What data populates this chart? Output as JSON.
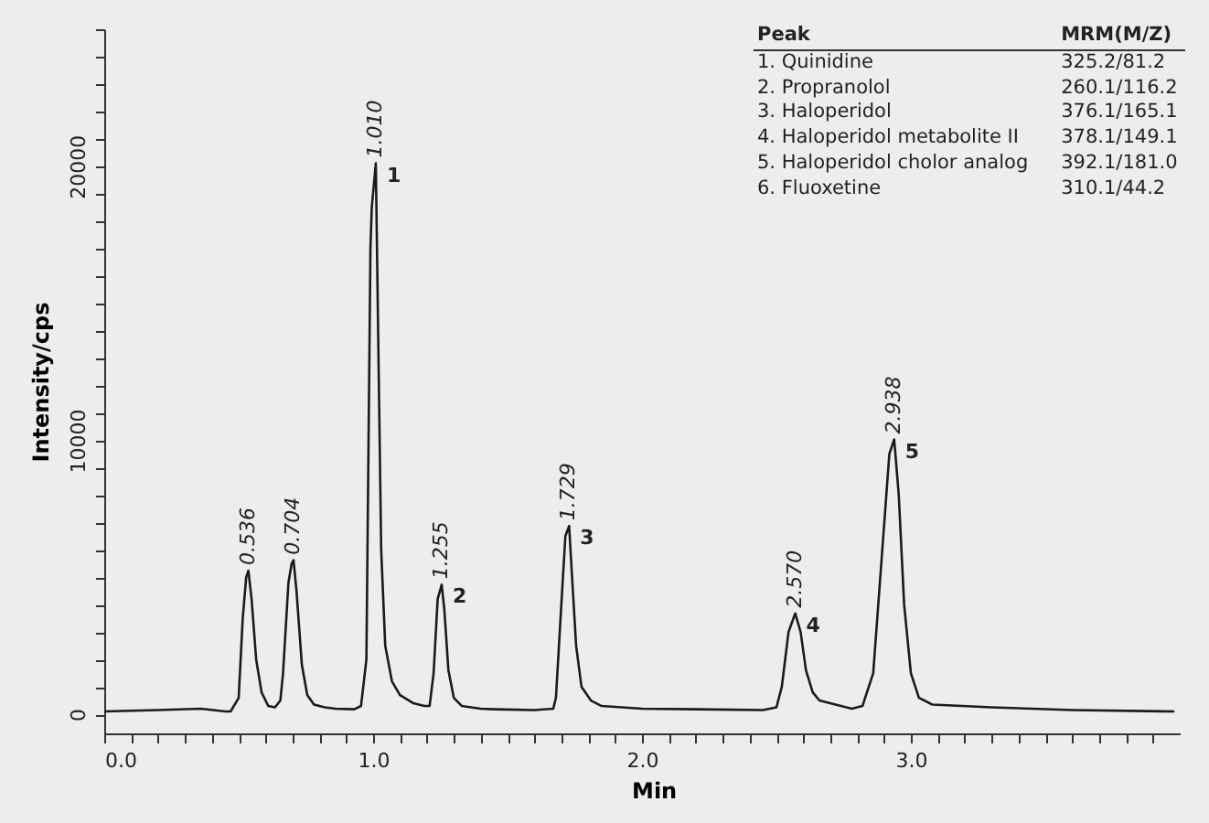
{
  "chart_data": {
    "type": "line",
    "xlabel": "Min",
    "ylabel": "Intensity/cps",
    "xlim": [
      0,
      4.0
    ],
    "ylim": [
      -700,
      25000
    ],
    "xticks": [
      {
        "value": 0,
        "label": "0.0"
      },
      {
        "value": 0.1,
        "label": null
      },
      {
        "value": 0.2,
        "label": null
      },
      {
        "value": 0.3,
        "label": null
      },
      {
        "value": 0.4,
        "label": null
      },
      {
        "value": 0.5,
        "label": null
      },
      {
        "value": 0.6,
        "label": null
      },
      {
        "value": 0.7,
        "label": null
      },
      {
        "value": 0.8,
        "label": null
      },
      {
        "value": 0.9,
        "label": null
      },
      {
        "value": 1,
        "label": "1.0"
      },
      {
        "value": 1.1,
        "label": null
      },
      {
        "value": 1.2,
        "label": null
      },
      {
        "value": 1.3,
        "label": null
      },
      {
        "value": 1.4,
        "label": null
      },
      {
        "value": 1.5,
        "label": null
      },
      {
        "value": 1.6,
        "label": null
      },
      {
        "value": 1.7,
        "label": null
      },
      {
        "value": 1.8,
        "label": null
      },
      {
        "value": 1.9,
        "label": null
      },
      {
        "value": 2,
        "label": "2.0"
      },
      {
        "value": 2.1,
        "label": null
      },
      {
        "value": 2.2,
        "label": null
      },
      {
        "value": 2.3,
        "label": null
      },
      {
        "value": 2.4,
        "label": null
      },
      {
        "value": 2.5,
        "label": null
      },
      {
        "value": 2.6,
        "label": null
      },
      {
        "value": 2.7,
        "label": null
      },
      {
        "value": 2.8,
        "label": null
      },
      {
        "value": 2.9,
        "label": null
      },
      {
        "value": 3,
        "label": "3.0"
      },
      {
        "value": 3.1,
        "label": null
      },
      {
        "value": 3.2,
        "label": null
      },
      {
        "value": 3.3,
        "label": null
      },
      {
        "value": 3.4,
        "label": null
      },
      {
        "value": 3.5,
        "label": null
      },
      {
        "value": 3.6,
        "label": null
      },
      {
        "value": 3.7,
        "label": null
      },
      {
        "value": 3.8,
        "label": null
      },
      {
        "value": 3.9,
        "label": null
      }
    ],
    "yticks": [
      0,
      {
        "value": 1000,
        "label": null
      },
      {
        "value": 2000,
        "label": null
      },
      {
        "value": 3000,
        "label": null
      },
      {
        "value": 4000,
        "label": null
      },
      {
        "value": 5000,
        "label": null
      },
      {
        "value": 6000,
        "label": null
      },
      {
        "value": 7000,
        "label": null
      },
      {
        "value": 8000,
        "label": null
      },
      {
        "value": 9000,
        "label": null
      },
      10000,
      {
        "value": 11000,
        "label": null
      },
      {
        "value": 12000,
        "label": null
      },
      {
        "value": 13000,
        "label": null
      },
      {
        "value": 14000,
        "label": null
      },
      {
        "value": 15000,
        "label": null
      },
      {
        "value": 16000,
        "label": null
      },
      {
        "value": 17000,
        "label": null
      },
      {
        "value": 18000,
        "label": null
      },
      {
        "value": 19000,
        "label": null
      },
      20000,
      {
        "value": 21000,
        "label": null
      },
      {
        "value": 22000,
        "label": null
      },
      {
        "value": 23000,
        "label": null
      },
      {
        "value": 24000,
        "label": null
      },
      {
        "value": 25000,
        "label": null
      }
    ],
    "grid": false,
    "marker": "none",
    "line_style": "solid",
    "series": [
      {
        "color": "#1a1a1a",
        "x": [
          0,
          0.2,
          0.36,
          0.45,
          0.47,
          0.5,
          0.515,
          0.528,
          0.536,
          0.548,
          0.565,
          0.585,
          0.61,
          0.635,
          0.655,
          0.665,
          0.685,
          0.697,
          0.704,
          0.715,
          0.735,
          0.755,
          0.78,
          0.82,
          0.86,
          0.93,
          0.955,
          0.975,
          0.99,
          0.995,
          1.01,
          1.02,
          1.03,
          1.045,
          1.07,
          1.1,
          1.15,
          1.19,
          1.21,
          1.225,
          1.24,
          1.255,
          1.265,
          1.28,
          1.3,
          1.33,
          1.4,
          1.45,
          1.6,
          1.67,
          1.68,
          1.7,
          1.715,
          1.729,
          1.74,
          1.755,
          1.775,
          1.81,
          1.85,
          2.0,
          2.2,
          2.45,
          2.5,
          2.52,
          2.545,
          2.57,
          2.59,
          2.61,
          2.635,
          2.66,
          2.72,
          2.78,
          2.82,
          2.86,
          2.89,
          2.92,
          2.938,
          2.955,
          2.975,
          3.0,
          3.03,
          3.08,
          3.3,
          3.6,
          3.98
        ],
        "values": [
          100,
          150,
          200,
          100,
          100,
          600,
          3500,
          5000,
          5240,
          4200,
          2000,
          800,
          300,
          250,
          500,
          1500,
          4800,
          5500,
          5620,
          4500,
          1800,
          700,
          350,
          250,
          200,
          180,
          300,
          2000,
          17000,
          18500,
          20110,
          13000,
          6000,
          2500,
          1200,
          700,
          400,
          300,
          300,
          1500,
          4200,
          4730,
          3800,
          1600,
          600,
          300,
          200,
          180,
          150,
          200,
          600,
          4000,
          6500,
          6870,
          5000,
          2500,
          1000,
          500,
          300,
          200,
          180,
          150,
          250,
          1000,
          3000,
          3680,
          3000,
          1600,
          800,
          500,
          350,
          200,
          300,
          1500,
          5500,
          9500,
          10030,
          8000,
          4000,
          1500,
          600,
          350,
          250,
          150,
          100
        ]
      }
    ],
    "annotations": [
      {
        "text": "0.536",
        "x": 0.536,
        "y": 5240
      },
      {
        "text": "0.704",
        "x": 0.704,
        "y": 5620
      },
      {
        "text": "1.010",
        "x": 1.01,
        "y": 20110
      },
      {
        "text": "1.255",
        "x": 1.255,
        "y": 4730
      },
      {
        "text": "1.729",
        "x": 1.729,
        "y": 6870
      },
      {
        "text": "2.570",
        "x": 2.57,
        "y": 3680
      },
      {
        "text": "2.938",
        "x": 2.938,
        "y": 10030
      },
      {
        "text": "1",
        "x": 1.01,
        "y": 20110
      },
      {
        "text": "2",
        "x": 1.255,
        "y": 4730
      },
      {
        "text": "3",
        "x": 1.729,
        "y": 6870
      },
      {
        "text": "4",
        "x": 2.57,
        "y": 3680
      },
      {
        "text": "5",
        "x": 2.938,
        "y": 10030
      },
      "Peak",
      "MRM(M/Z)",
      "1. Quinidine",
      "325.2/81.2",
      "2. Propranolol",
      "260.1/116.2",
      "3. Haloperidol",
      "376.1/165.1",
      "4. Haloperidol metabolite II",
      "378.1/149.1",
      "5. Haloperidol cholor analog",
      "392.1/181.0",
      "6. Fluoxetine",
      "310.1/44.2"
    ]
  }
}
